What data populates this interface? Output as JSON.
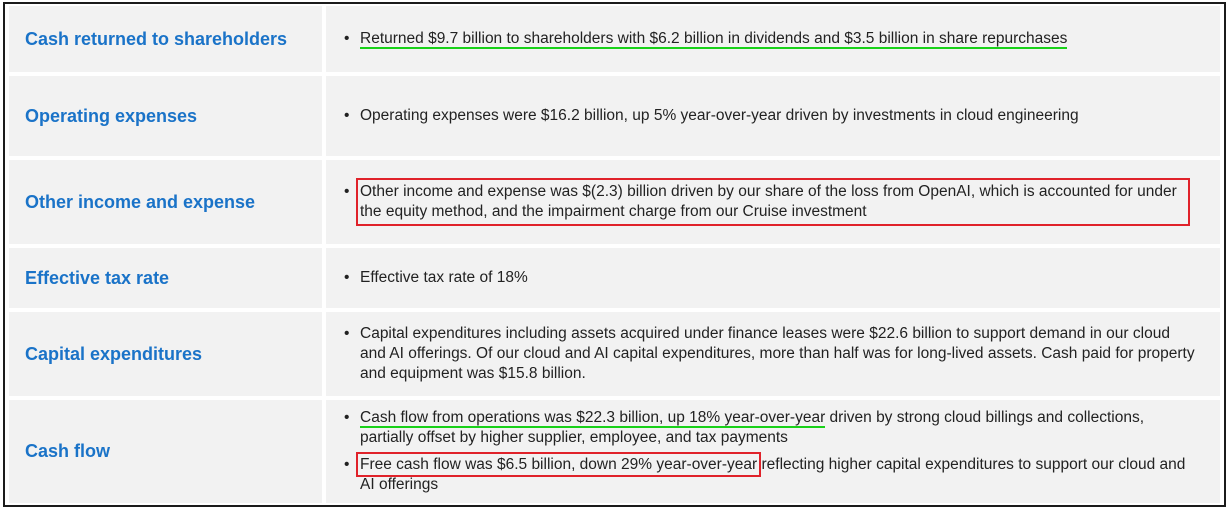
{
  "rows": [
    {
      "label": "Cash returned to shareholders",
      "text": "Returned $9.7 billion to shareholders with $6.2 billion in dividends and $3.5 billion in share repurchases"
    },
    {
      "label": "Operating expenses",
      "text": "Operating expenses were $16.2 billion, up 5% year-over-year driven by investments in cloud engineering"
    },
    {
      "label": "Other income and expense",
      "text": "Other income and expense was $(2.3) billion driven by our share of the loss from OpenAI, which is accounted for under the equity method, and the impairment charge from our Cruise investment"
    },
    {
      "label": "Effective tax rate",
      "text": "Effective tax rate of 18%"
    },
    {
      "label": "Capital expenditures",
      "text": "Capital expenditures including assets acquired under finance leases were $22.6 billion to support demand in our cloud and AI offerings. Of our cloud and AI capital expenditures, more than half was for long-lived assets. Cash paid for property and equipment was $15.8 billion."
    },
    {
      "label": "Cash flow",
      "bullet1_highlight": "Cash flow from operations was $22.3 billion, up 18% year-over-year",
      "bullet1_rest": " driven by strong cloud billings and collections, partially offset by higher supplier, employee, and tax payments",
      "bullet2_highlight": "Free cash flow was $6.5 billion, down 29% year-over-year",
      "bullet2_rest": " reflecting higher capital expenditures to support our cloud and AI offerings"
    }
  ],
  "bullet_char": "•",
  "colors": {
    "label_blue": "#1a73c8",
    "highlight_green": "#19d119",
    "box_red": "#e0222a",
    "cell_bg": "#f2f2f2"
  }
}
